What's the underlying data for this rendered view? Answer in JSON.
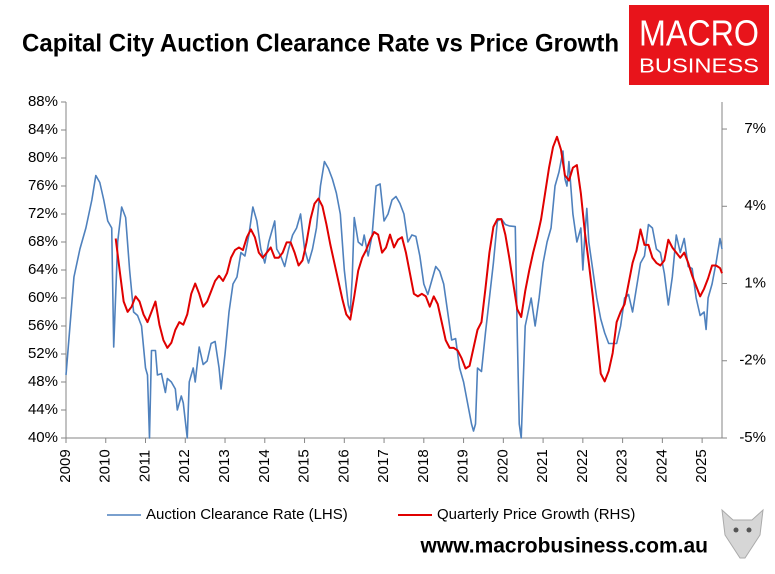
{
  "chart_data": {
    "type": "line",
    "title": "Capital City Auction Clearance Rate vs Price Growth",
    "logo": [
      "MACRO",
      "BUSINESS"
    ],
    "source": "www.macrobusiness.com.au",
    "xlim": [
      2009,
      2025.5
    ],
    "xticks": [
      2009,
      2010,
      2011,
      2012,
      2013,
      2014,
      2015,
      2016,
      2017,
      2018,
      2019,
      2020,
      2021,
      2022,
      2023,
      2024,
      2025
    ],
    "ylim": [
      40,
      88
    ],
    "yticks": [
      {
        "value": 40,
        "label": "40%"
      },
      {
        "value": 44,
        "label": "44%"
      },
      {
        "value": 48,
        "label": "48%"
      },
      {
        "value": 52,
        "label": "52%"
      },
      {
        "value": 56,
        "label": "56%"
      },
      {
        "value": 60,
        "label": "60%"
      },
      {
        "value": 64,
        "label": "64%"
      },
      {
        "value": 68,
        "label": "68%"
      },
      {
        "value": 72,
        "label": "72%"
      },
      {
        "value": 76,
        "label": "76%"
      },
      {
        "value": 80,
        "label": "80%"
      },
      {
        "value": 84,
        "label": "84%"
      },
      {
        "value": 88,
        "label": "88%"
      }
    ],
    "y2lim": [
      -5,
      8.05
    ],
    "y2ticks": [
      {
        "value": -5,
        "label": "-5%"
      },
      {
        "value": -2,
        "label": "-2%"
      },
      {
        "value": 1,
        "label": "1%"
      },
      {
        "value": 4,
        "label": "4%"
      },
      {
        "value": 7,
        "label": "7%"
      }
    ],
    "grid": false,
    "series": [
      {
        "name": "Auction Clearance Rate (LHS)",
        "color": "#4f81bd",
        "axis": "y",
        "x": [
          2009.0,
          2009.1,
          2009.2,
          2009.35,
          2009.5,
          2009.65,
          2009.75,
          2009.85,
          2009.95,
          2010.05,
          2010.15,
          2010.2,
          2010.3,
          2010.4,
          2010.5,
          2010.6,
          2010.7,
          2010.8,
          2010.9,
          2011.0,
          2011.05,
          2011.1,
          2011.15,
          2011.25,
          2011.3,
          2011.4,
          2011.5,
          2011.55,
          2011.65,
          2011.75,
          2011.8,
          2011.9,
          2011.95,
          2012.05,
          2012.1,
          2012.2,
          2012.25,
          2012.35,
          2012.45,
          2012.55,
          2012.65,
          2012.75,
          2012.85,
          2012.9,
          2013.0,
          2013.1,
          2013.2,
          2013.3,
          2013.4,
          2013.5,
          2013.6,
          2013.7,
          2013.8,
          2013.9,
          2014.0,
          2014.1,
          2014.2,
          2014.25,
          2014.3,
          2014.4,
          2014.5,
          2014.6,
          2014.7,
          2014.8,
          2014.9,
          2015.0,
          2015.1,
          2015.2,
          2015.3,
          2015.4,
          2015.5,
          2015.6,
          2015.7,
          2015.8,
          2015.9,
          2016.0,
          2016.1,
          2016.15,
          2016.2,
          2016.25,
          2016.35,
          2016.45,
          2016.5,
          2016.6,
          2016.7,
          2016.8,
          2016.9,
          2017.0,
          2017.1,
          2017.2,
          2017.3,
          2017.4,
          2017.5,
          2017.6,
          2017.7,
          2017.8,
          2017.9,
          2018.0,
          2018.1,
          2018.2,
          2018.3,
          2018.4,
          2018.5,
          2018.6,
          2018.7,
          2018.8,
          2018.9,
          2019.0,
          2019.1,
          2019.2,
          2019.25,
          2019.3,
          2019.35,
          2019.45,
          2019.55,
          2019.65,
          2019.75,
          2019.85,
          2019.95,
          2020.05,
          2020.15,
          2020.3,
          2020.35,
          2020.4,
          2020.45,
          2020.55,
          2020.7,
          2020.8,
          2020.9,
          2021.0,
          2021.1,
          2021.2,
          2021.3,
          2021.4,
          2021.5,
          2021.55,
          2021.6,
          2021.65,
          2021.75,
          2021.85,
          2021.95,
          2022.0,
          2022.05,
          2022.1,
          2022.15,
          2022.25,
          2022.35,
          2022.45,
          2022.55,
          2022.65,
          2022.85,
          2022.95,
          2023.05,
          2023.15,
          2023.25,
          2023.35,
          2023.45,
          2023.55,
          2023.65,
          2023.75,
          2023.85,
          2023.95,
          2024.05,
          2024.15,
          2024.25,
          2024.35,
          2024.45,
          2024.55,
          2024.65,
          2024.75,
          2024.85,
          2024.95,
          2025.05,
          2025.1,
          2025.15,
          2025.25,
          2025.35,
          2025.45,
          2025.5
        ],
        "values": [
          49,
          56,
          63,
          67,
          70,
          74,
          77.5,
          76.5,
          74,
          71,
          70,
          53,
          68,
          73,
          71.5,
          64,
          58,
          57.5,
          56,
          50,
          49,
          40,
          52.5,
          52.5,
          49,
          49.2,
          46.5,
          48.5,
          48,
          47,
          44,
          46,
          45,
          40,
          48,
          50,
          48,
          53,
          50.5,
          51,
          53.5,
          53.8,
          50,
          47,
          52,
          58,
          62,
          63,
          66.5,
          66,
          69,
          73,
          71,
          67,
          65,
          68,
          70,
          71,
          67,
          66,
          64.5,
          67,
          69,
          70,
          72,
          67,
          65,
          67,
          70,
          76,
          79.5,
          78.5,
          77,
          75,
          72,
          64,
          59,
          58,
          63,
          71.5,
          68,
          67.5,
          69,
          66,
          69,
          76,
          76.3,
          71,
          72,
          74,
          74.5,
          73.5,
          72,
          68,
          69,
          68.8,
          66,
          62,
          60.5,
          62.5,
          64.5,
          63.8,
          62,
          58,
          54,
          54.2,
          50,
          48,
          45,
          42,
          41,
          42,
          50,
          49.5,
          55,
          60,
          65,
          71,
          71.3,
          70.5,
          70.3,
          70.2,
          55,
          42,
          40,
          56,
          60,
          56,
          60,
          65,
          68,
          70,
          76,
          78,
          81,
          77,
          76,
          79.5,
          72,
          68,
          70,
          64,
          69,
          72.8,
          68,
          64,
          60,
          57,
          55,
          53.5,
          53.5,
          56,
          60,
          60.5,
          58,
          61.5,
          65,
          66,
          70.5,
          70,
          67,
          66.5,
          63.5,
          59,
          63,
          69,
          66.5,
          68.5,
          64.5,
          64.2,
          60,
          57.5,
          58,
          55.5,
          60,
          62,
          65,
          68.5,
          67
        ]
      },
      {
        "name": "Quarterly Price Growth (RHS)",
        "color": "#e00000",
        "axis": "y2",
        "x": [
          2010.25,
          2010.35,
          2010.45,
          2010.55,
          2010.65,
          2010.75,
          2010.85,
          2010.95,
          2011.05,
          2011.15,
          2011.25,
          2011.35,
          2011.45,
          2011.55,
          2011.65,
          2011.75,
          2011.85,
          2011.95,
          2012.05,
          2012.15,
          2012.25,
          2012.35,
          2012.45,
          2012.55,
          2012.65,
          2012.75,
          2012.85,
          2012.95,
          2013.05,
          2013.15,
          2013.25,
          2013.35,
          2013.45,
          2013.55,
          2013.65,
          2013.75,
          2013.85,
          2013.95,
          2014.05,
          2014.15,
          2014.25,
          2014.35,
          2014.45,
          2014.55,
          2014.65,
          2014.75,
          2014.85,
          2014.95,
          2015.05,
          2015.15,
          2015.25,
          2015.35,
          2015.45,
          2015.55,
          2015.65,
          2015.75,
          2015.85,
          2015.95,
          2016.05,
          2016.15,
          2016.25,
          2016.35,
          2016.45,
          2016.55,
          2016.65,
          2016.75,
          2016.85,
          2016.95,
          2017.05,
          2017.15,
          2017.25,
          2017.35,
          2017.45,
          2017.55,
          2017.65,
          2017.75,
          2017.85,
          2017.95,
          2018.05,
          2018.15,
          2018.25,
          2018.35,
          2018.45,
          2018.55,
          2018.65,
          2018.75,
          2018.85,
          2018.95,
          2019.05,
          2019.15,
          2019.25,
          2019.35,
          2019.45,
          2019.55,
          2019.65,
          2019.75,
          2019.85,
          2019.95,
          2020.05,
          2020.15,
          2020.25,
          2020.35,
          2020.45,
          2020.55,
          2020.65,
          2020.75,
          2020.85,
          2020.95,
          2021.05,
          2021.15,
          2021.25,
          2021.35,
          2021.45,
          2021.55,
          2021.65,
          2021.75,
          2021.85,
          2021.95,
          2022.05,
          2022.15,
          2022.25,
          2022.35,
          2022.45,
          2022.55,
          2022.65,
          2022.75,
          2022.85,
          2022.95,
          2023.05,
          2023.15,
          2023.25,
          2023.35,
          2023.45,
          2023.55,
          2023.65,
          2023.75,
          2023.85,
          2023.95,
          2024.05,
          2024.15,
          2024.25,
          2024.35,
          2024.45,
          2024.55,
          2024.65,
          2024.75,
          2024.85,
          2024.95,
          2025.05,
          2025.15,
          2025.25,
          2025.35,
          2025.45,
          2025.5
        ],
        "values": [
          2.75,
          1.5,
          0.3,
          -0.1,
          0.1,
          0.5,
          0.3,
          -0.2,
          -0.5,
          -0.1,
          0.3,
          -0.6,
          -1.2,
          -1.5,
          -1.3,
          -0.8,
          -0.5,
          -0.6,
          -0.2,
          0.6,
          1.0,
          0.6,
          0.1,
          0.3,
          0.7,
          1.1,
          1.3,
          1.1,
          1.4,
          2.0,
          2.3,
          2.4,
          2.3,
          2.8,
          3.1,
          2.8,
          2.2,
          2.0,
          2.2,
          2.4,
          2.0,
          2.0,
          2.2,
          2.6,
          2.6,
          2.2,
          1.7,
          1.9,
          2.6,
          3.5,
          4.1,
          4.3,
          4.0,
          3.3,
          2.5,
          1.8,
          1.1,
          0.4,
          -0.2,
          -0.4,
          0.5,
          1.5,
          2.0,
          2.3,
          2.7,
          3.0,
          2.9,
          2.2,
          2.4,
          2.9,
          2.4,
          2.7,
          2.8,
          2.2,
          1.4,
          0.6,
          0.5,
          0.6,
          0.5,
          0.1,
          0.5,
          0.2,
          -0.5,
          -1.2,
          -1.5,
          -1.5,
          -1.6,
          -1.9,
          -2.3,
          -2.2,
          -1.5,
          -0.8,
          -0.5,
          0.8,
          2.2,
          3.2,
          3.5,
          3.5,
          2.9,
          2.0,
          1.0,
          0.0,
          -0.3,
          0.7,
          1.5,
          2.2,
          2.8,
          3.5,
          4.5,
          5.5,
          6.3,
          6.7,
          6.2,
          5.2,
          5.0,
          5.5,
          5.6,
          4.5,
          3.0,
          1.8,
          0.5,
          -1.0,
          -2.5,
          -2.8,
          -2.4,
          -1.7,
          -0.5,
          -0.1,
          0.2,
          1.0,
          1.8,
          2.3,
          3.1,
          2.5,
          2.5,
          2.0,
          1.8,
          1.7,
          1.9,
          2.7,
          2.4,
          2.2,
          2.0,
          2.2,
          1.8,
          1.3,
          0.9,
          0.5,
          0.8,
          1.2,
          1.7,
          1.7,
          1.6,
          1.4
        ]
      }
    ]
  }
}
